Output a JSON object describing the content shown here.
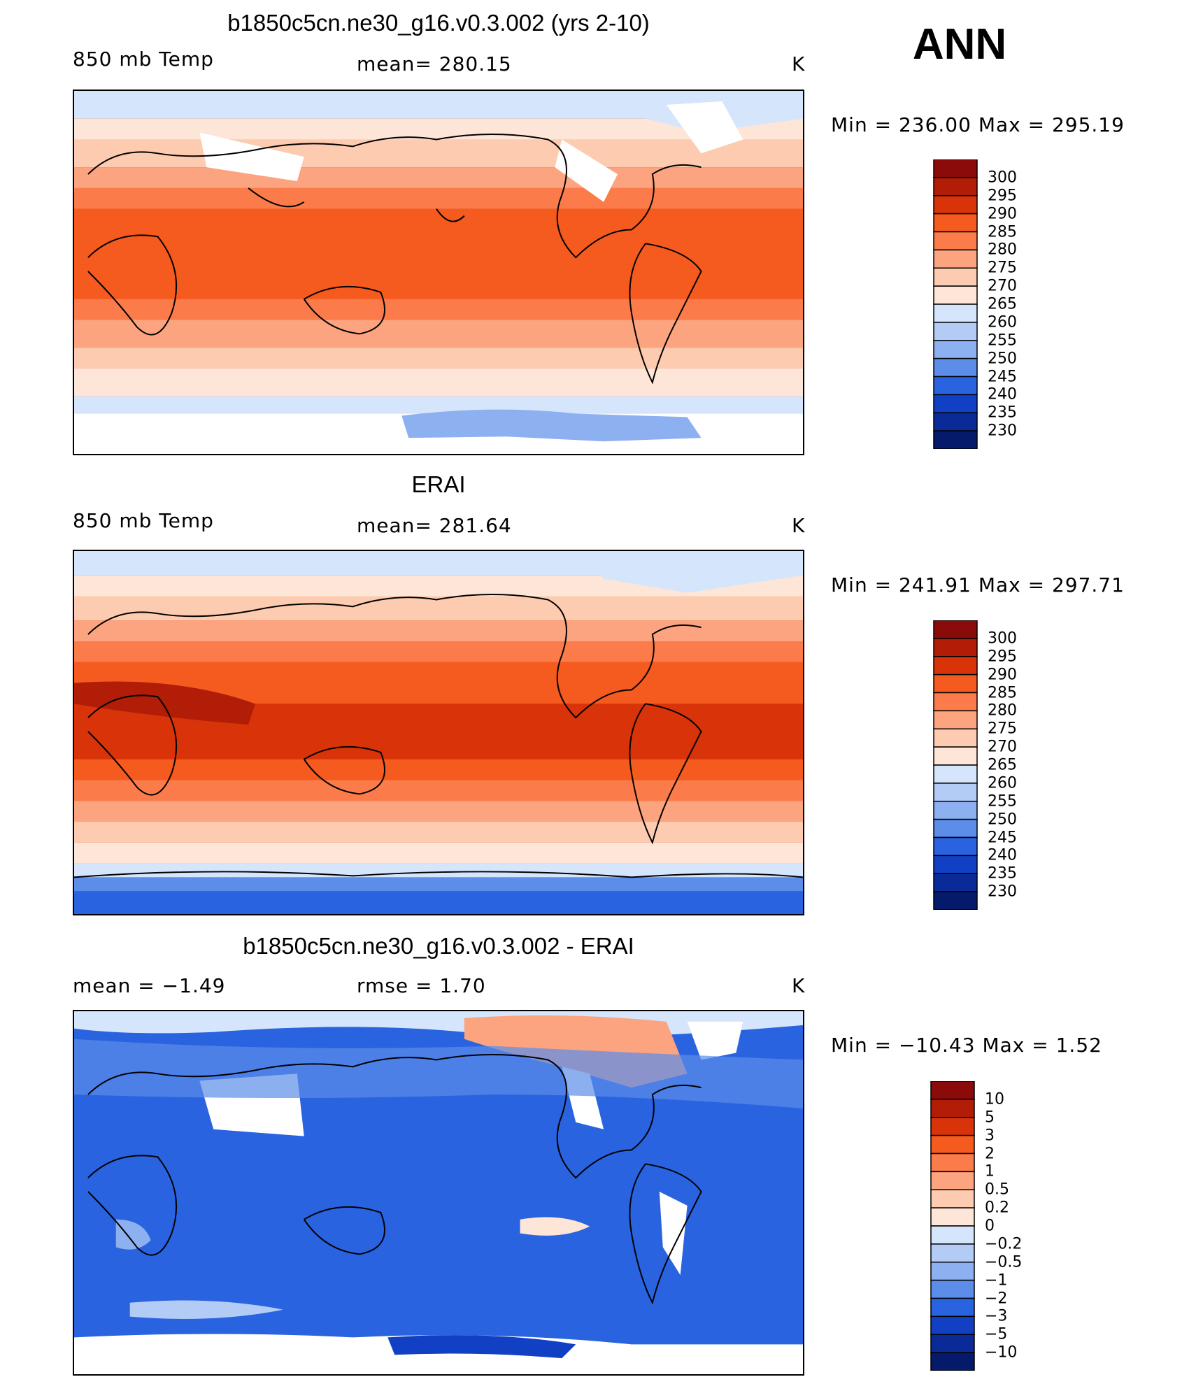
{
  "season": "ANN",
  "chart_data": [
    {
      "type": "heatmap",
      "title": "b1850c5cn.ne30_g16.v0.3.002 (yrs 2-10)",
      "left_label": "850 mb Temp",
      "center_label": "mean= 280.15",
      "units": "K",
      "min_max": "Min = 236.00 Max = 295.19",
      "colorbar_levels": [
        "300",
        "295",
        "290",
        "285",
        "280",
        "275",
        "270",
        "265",
        "260",
        "255",
        "250",
        "245",
        "240",
        "235",
        "230"
      ],
      "colorbar_colors": [
        "#8b0a0a",
        "#b11d07",
        "#d9330a",
        "#f55a1e",
        "#fb7c4a",
        "#fca47f",
        "#fdcbb0",
        "#fde6d8",
        "#d5e5fb",
        "#b3ccf6",
        "#8db0f1",
        "#5b8de9",
        "#2a63e0",
        "#1240c4",
        "#0a2a97",
        "#061a6b"
      ]
    },
    {
      "type": "heatmap",
      "title": "ERAI",
      "left_label": "850 mb Temp",
      "center_label": "mean= 281.64",
      "units": "K",
      "min_max": "Min = 241.91 Max = 297.71",
      "colorbar_levels": [
        "300",
        "295",
        "290",
        "285",
        "280",
        "275",
        "270",
        "265",
        "260",
        "255",
        "250",
        "245",
        "240",
        "235",
        "230"
      ],
      "colorbar_colors": [
        "#8b0a0a",
        "#b11d07",
        "#d9330a",
        "#f55a1e",
        "#fb7c4a",
        "#fca47f",
        "#fdcbb0",
        "#fde6d8",
        "#d5e5fb",
        "#b3ccf6",
        "#8db0f1",
        "#5b8de9",
        "#2a63e0",
        "#1240c4",
        "#0a2a97",
        "#061a6b"
      ]
    },
    {
      "type": "heatmap",
      "title": "b1850c5cn.ne30_g16.v0.3.002 - ERAI",
      "left_label": "mean =   −1.49",
      "center_label": "rmse =    1.70",
      "units": "K",
      "min_max": "Min = −10.43 Max =    1.52",
      "colorbar_levels": [
        "10",
        "5",
        "3",
        "2",
        "1",
        "0.5",
        "0.2",
        "0",
        "−0.2",
        "−0.5",
        "−1",
        "−2",
        "−3",
        "−5",
        "−10"
      ],
      "colorbar_colors": [
        "#8b0a0a",
        "#b11d07",
        "#d9330a",
        "#f55a1e",
        "#fb7c4a",
        "#fca47f",
        "#fdcbb0",
        "#fde6d8",
        "#d5e5fb",
        "#b3ccf6",
        "#8db0f1",
        "#5b8de9",
        "#2a63e0",
        "#1240c4",
        "#0a2a97",
        "#061a6b"
      ]
    }
  ]
}
